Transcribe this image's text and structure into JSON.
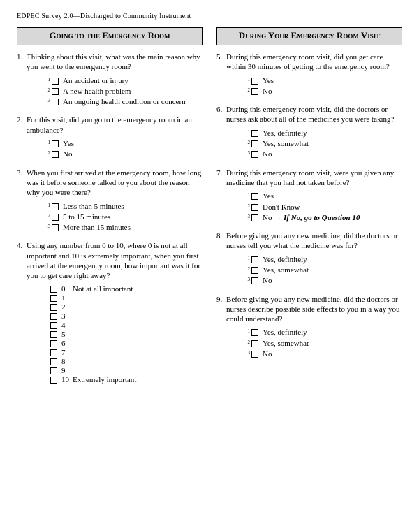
{
  "header": "EDPEC Survey 2.0—Discharged to Community Instrument",
  "left": {
    "title": "Going to the Emergency Room",
    "questions": [
      {
        "num": "1.",
        "text": "Thinking about this visit, what was the main reason why you went to the emergency room?",
        "options": [
          {
            "sup": "1",
            "label": "An accident or injury"
          },
          {
            "sup": "2",
            "label": "A new health problem"
          },
          {
            "sup": "3",
            "label": "An ongoing health condition or concern"
          }
        ]
      },
      {
        "num": "2.",
        "text": "For this visit, did you go to the emergency room in an ambulance?",
        "options": [
          {
            "sup": "1",
            "label": "Yes"
          },
          {
            "sup": "2",
            "label": "No"
          }
        ]
      },
      {
        "num": "3.",
        "text": "When you first arrived at the emergency room, how long was it before someone talked to you about the reason why you were there?",
        "options": [
          {
            "sup": "1",
            "label": "Less than 5 minutes"
          },
          {
            "sup": "2",
            "label": "5 to 15 minutes"
          },
          {
            "sup": "3",
            "label": "More than 15 minutes"
          }
        ]
      },
      {
        "num": "4.",
        "text": "Using any number from 0 to 10, where 0 is not at all important and 10 is extremely important, when you first arrived at the emergency room, how important was it for you to get care right away?",
        "scale": [
          {
            "n": "0",
            "anchor": "Not at all important"
          },
          {
            "n": "1",
            "anchor": ""
          },
          {
            "n": "2",
            "anchor": ""
          },
          {
            "n": "3",
            "anchor": ""
          },
          {
            "n": "4",
            "anchor": ""
          },
          {
            "n": "5",
            "anchor": ""
          },
          {
            "n": "6",
            "anchor": ""
          },
          {
            "n": "7",
            "anchor": ""
          },
          {
            "n": "8",
            "anchor": ""
          },
          {
            "n": "9",
            "anchor": ""
          },
          {
            "n": "10",
            "anchor": "Extremely important"
          }
        ]
      }
    ]
  },
  "right": {
    "title": "During Your Emergency Room Visit",
    "questions": [
      {
        "num": "5.",
        "text": "During this emergency room visit, did you get care within 30 minutes of getting to the emergency room?",
        "options": [
          {
            "sup": "1",
            "label": "Yes"
          },
          {
            "sup": "2",
            "label": "No"
          }
        ]
      },
      {
        "num": "6.",
        "text": "During this emergency room visit, did the doctors or nurses ask about all of the medicines you were taking?",
        "options": [
          {
            "sup": "1",
            "label": "Yes, definitely"
          },
          {
            "sup": "2",
            "label": "Yes, somewhat"
          },
          {
            "sup": "3",
            "label": "No"
          }
        ]
      },
      {
        "num": "7.",
        "text": "During this emergency room visit, were you given any medicine that you had not taken before?",
        "options": [
          {
            "sup": "1",
            "label": "Yes"
          },
          {
            "sup": "2",
            "label": "Don't Know"
          },
          {
            "sup": "3",
            "label": "No → ",
            "skip": "If No, go to Question 10"
          }
        ]
      },
      {
        "num": "8.",
        "text": "Before giving you any new medicine, did the doctors or nurses tell you what the medicine was for?",
        "options": [
          {
            "sup": "1",
            "label": "Yes, definitely"
          },
          {
            "sup": "2",
            "label": "Yes, somewhat"
          },
          {
            "sup": "3",
            "label": "No"
          }
        ]
      },
      {
        "num": "9.",
        "text": "Before giving you any new medicine, did the doctors or nurses describe possible side effects to you in a way you could understand?",
        "options": [
          {
            "sup": "1",
            "label": "Yes, definitely"
          },
          {
            "sup": "2",
            "label": "Yes, somewhat"
          },
          {
            "sup": "3",
            "label": "No"
          }
        ]
      }
    ]
  }
}
